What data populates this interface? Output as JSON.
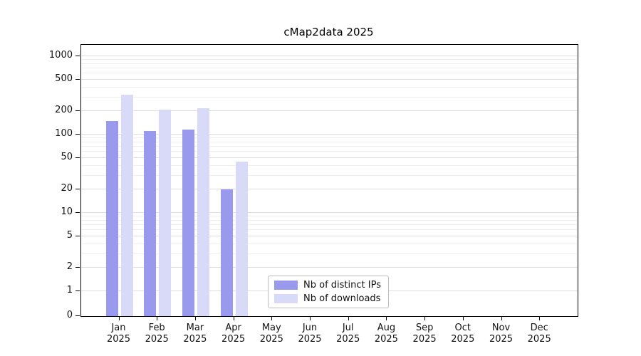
{
  "chart_data": {
    "type": "bar",
    "title": "cMap2data 2025",
    "categories": [
      "Jan",
      "Feb",
      "Mar",
      "Apr",
      "May",
      "Jun",
      "Jul",
      "Aug",
      "Sep",
      "Oct",
      "Nov",
      "Dec"
    ],
    "x_tick_year": "2025",
    "series": [
      {
        "name": "Nb of distinct IPs",
        "color": "#9999ee",
        "values": [
          150,
          110,
          115,
          20,
          0,
          0,
          0,
          0,
          0,
          0,
          0,
          0
        ]
      },
      {
        "name": "Nb of downloads",
        "color": "#d9d9f8",
        "values": [
          320,
          210,
          215,
          45,
          0,
          0,
          0,
          0,
          0,
          0,
          0,
          0
        ]
      }
    ],
    "y_scale": "symlog",
    "y_ticks": [
      0,
      1,
      2,
      5,
      10,
      20,
      50,
      100,
      200,
      500,
      1000
    ],
    "y_minor_ticks": [
      3,
      4,
      6,
      7,
      8,
      9,
      30,
      40,
      60,
      70,
      80,
      90,
      300,
      400,
      600,
      700,
      800,
      900
    ],
    "ylim": [
      0,
      1000
    ],
    "grid": "horizontal",
    "legend_position": "lower-center",
    "colors": {
      "distinct_ips": "#9999ee",
      "downloads": "#d9d9f8",
      "grid_major": "#dedede",
      "grid_minor": "#efefef",
      "spine": "#000000"
    }
  }
}
